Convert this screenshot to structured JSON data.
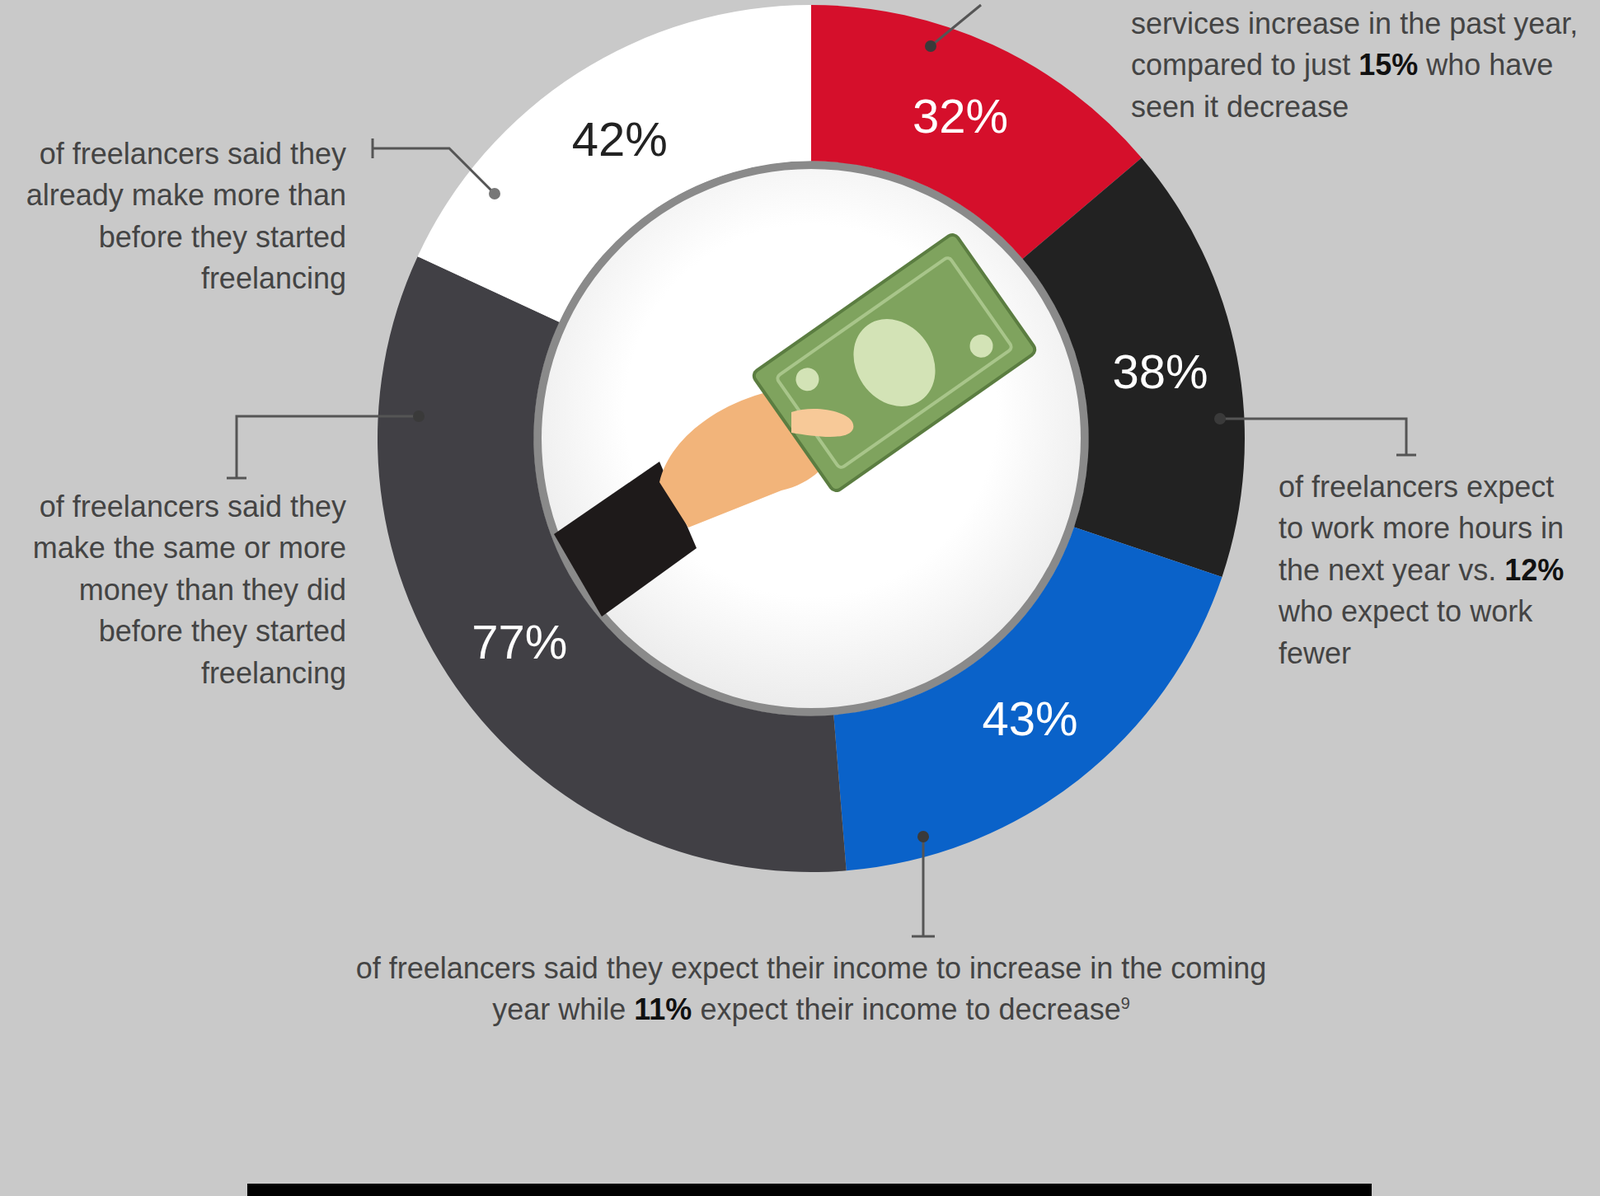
{
  "chart_data": {
    "type": "pie",
    "values": [
      32,
      38,
      43,
      77,
      42
    ],
    "value_labels": [
      "32%",
      "38%",
      "43%",
      "77%",
      "42%"
    ],
    "colors": [
      "#d50f2b",
      "#222222",
      "#0a62c9",
      "#414045",
      "#ffffff"
    ],
    "data_labels": true,
    "annotations": [
      {
        "text": "services increase in the past year, compared to just 15% who have seen it decrease"
      },
      {
        "text": "of freelancers expect to work more hours in the next year vs. 12% who expect to work fewer"
      },
      {
        "text": "of freelancers said they expect their income to increase in the coming year while 11% expect their income to decrease",
        "footnote": "9"
      },
      {
        "text": "of freelancers said they make the same or more money than they did before they started freelancing"
      },
      {
        "text": "of freelancers said they already make more than before they started freelancing"
      }
    ]
  }
}
